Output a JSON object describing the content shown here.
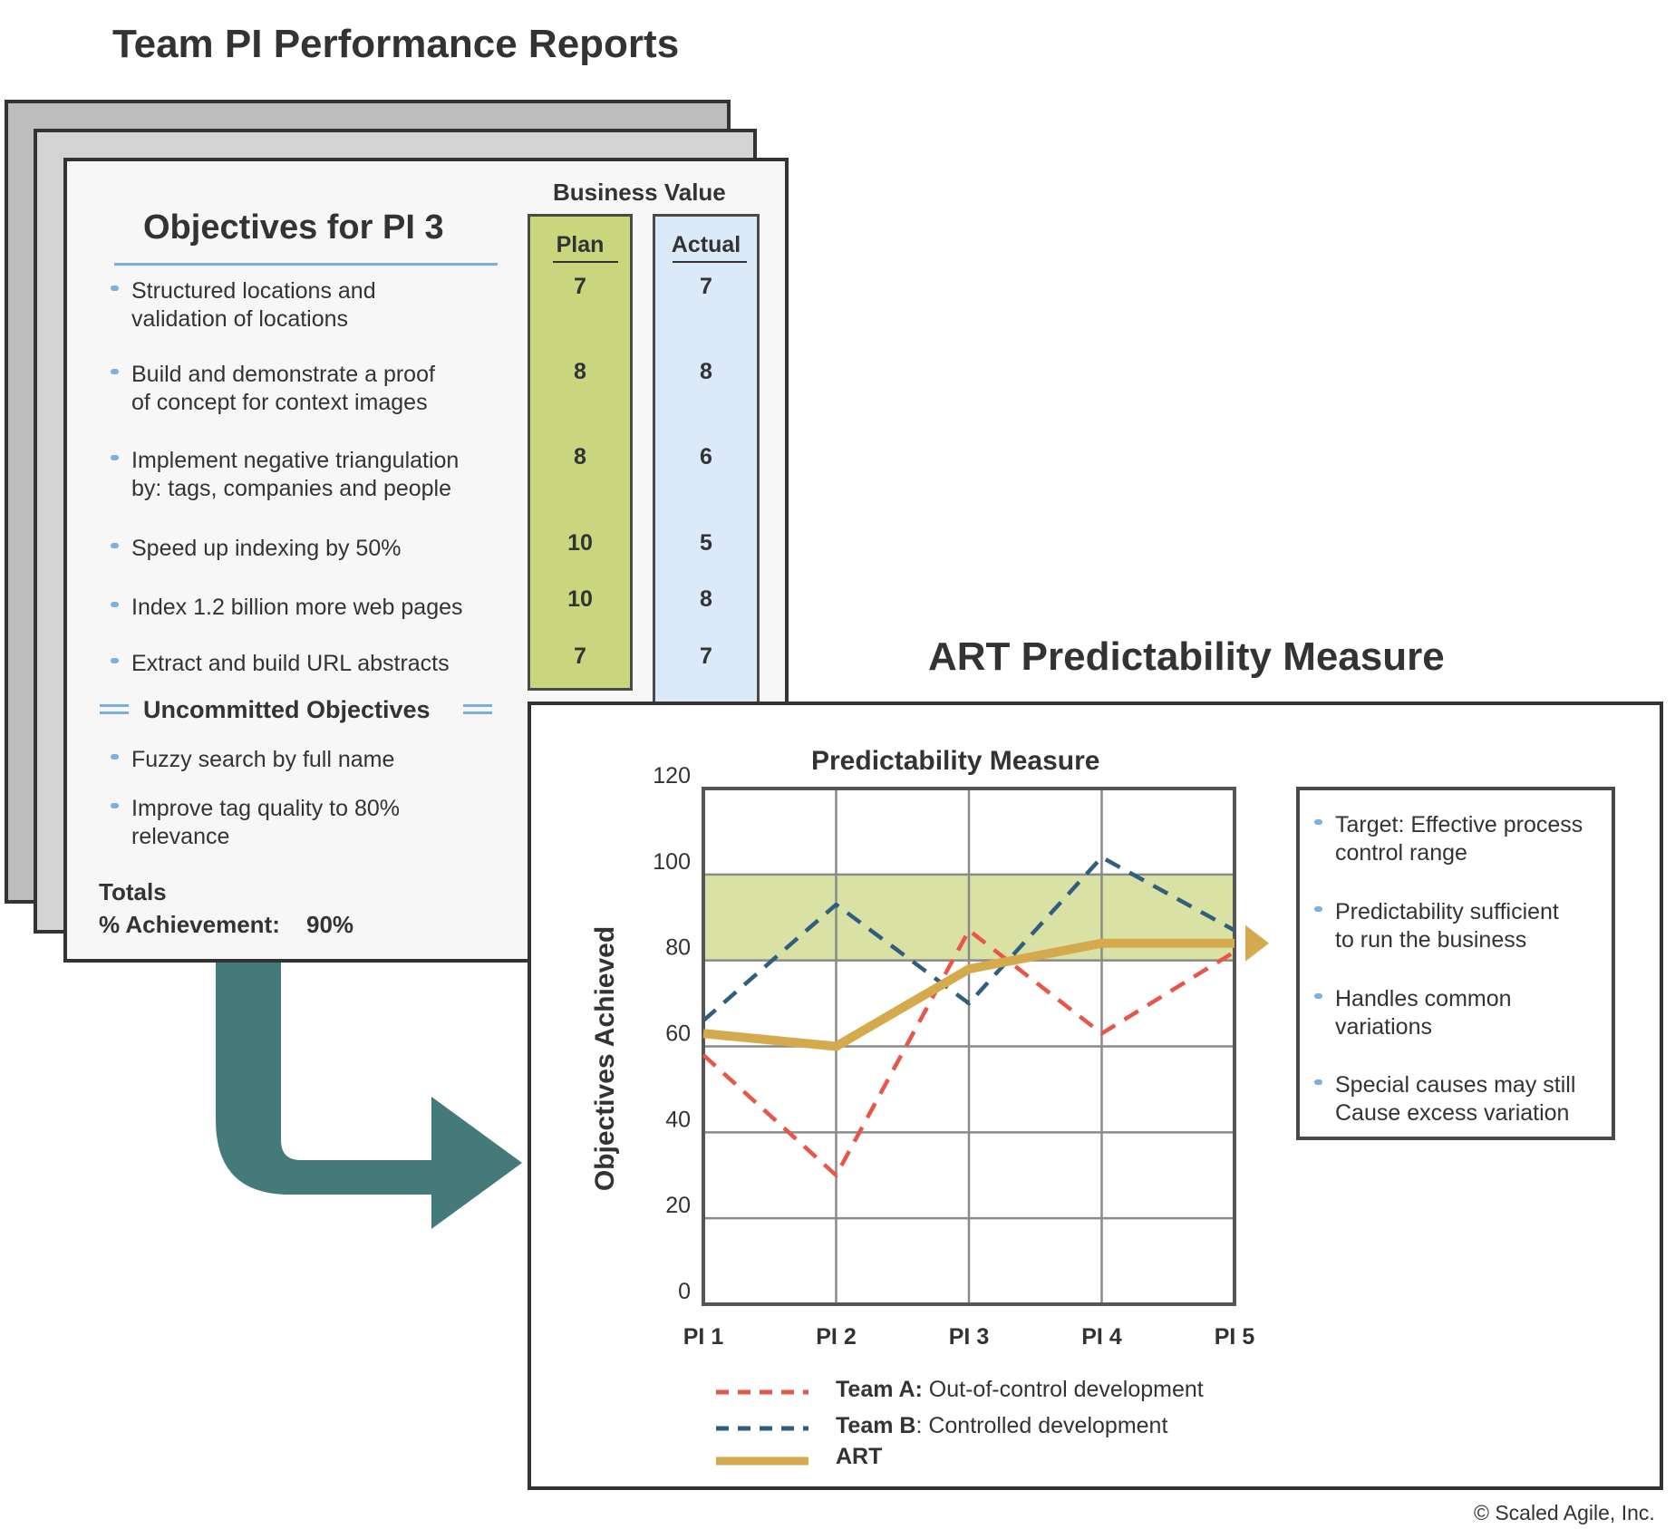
{
  "team_report": {
    "title": "Team PI Performance Reports",
    "objectives_title": "Objectives for PI 3",
    "business_value_label": "Business Value",
    "plan_label": "Plan",
    "actual_label": "Actual",
    "objectives": [
      {
        "text": "Structured locations and\nvalidation of locations",
        "plan": "7",
        "actual": "7"
      },
      {
        "text": "Build and demonstrate a proof\nof concept for context images",
        "plan": "8",
        "actual": "8"
      },
      {
        "text": "Implement negative triangulation\nby: tags, companies and people",
        "plan": "8",
        "actual": "6"
      },
      {
        "text": "Speed up indexing by 50%",
        "plan": "10",
        "actual": "5"
      },
      {
        "text": "Index 1.2 billion more web pages",
        "plan": "10",
        "actual": "8"
      },
      {
        "text": "Extract and build URL abstracts",
        "plan": "7",
        "actual": "7"
      }
    ],
    "uncommitted_label": "Uncommitted Objectives",
    "uncommitted": [
      {
        "text": "Fuzzy search by full name"
      },
      {
        "text": "Improve tag quality to 80%\nrelevance"
      }
    ],
    "totals_label": "Totals",
    "achievement_label": "% Achievement:",
    "achievement_value": "90%"
  },
  "art": {
    "title": "ART Predictability Measure",
    "notes": [
      "Target: Effective process\ncontrol range",
      "Predictability sufficient\nto run the business",
      "Handles common\nvariations",
      "Special causes may still\nCause excess variation"
    ],
    "legend": [
      {
        "bold": "Team A:",
        "rest": " Out-of-control development"
      },
      {
        "bold": "Team B",
        "rest": ": Controlled development"
      },
      {
        "bold": "ART",
        "rest": ""
      }
    ]
  },
  "colors": {
    "dark": "#333333",
    "plan_fill": "#c9d67e",
    "actual_fill": "#dce9f8",
    "band_fill": "#d9e1a5",
    "team_a": "#e8554a",
    "team_b": "#2f5f7d",
    "art": "#d4aa4c",
    "arrow": "#457a7b",
    "bullet": "#7ab0e0"
  },
  "chart_data": {
    "type": "line",
    "title": "Predictability Measure",
    "ylabel": "Objectives Achieved",
    "xlabel": "",
    "categories": [
      "PI 1",
      "PI 2",
      "PI 3",
      "PI 4",
      "PI 5"
    ],
    "y_ticks": [
      "0",
      "20",
      "40",
      "60",
      "80",
      "100",
      "120"
    ],
    "ylim": [
      0,
      120
    ],
    "target_band": [
      80,
      100
    ],
    "grid": true,
    "series": [
      {
        "name": "Team A",
        "style": "dashed",
        "values": [
          58,
          30,
          87,
          63,
          82
        ]
      },
      {
        "name": "Team B",
        "style": "dashed",
        "values": [
          66,
          93,
          70,
          104,
          87
        ]
      },
      {
        "name": "ART",
        "style": "solid",
        "values": [
          63,
          60,
          78,
          84,
          84
        ]
      }
    ]
  },
  "copyright": "© Scaled Agile, Inc."
}
